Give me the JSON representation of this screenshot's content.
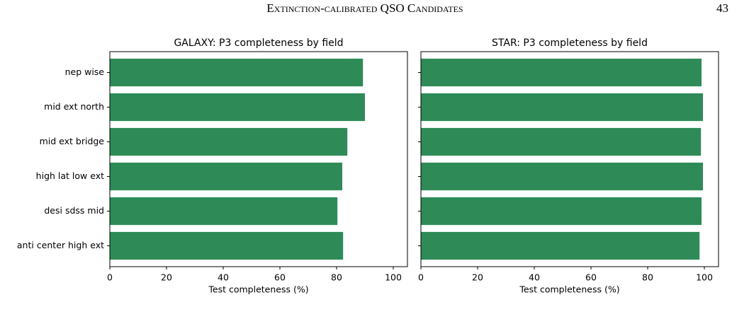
{
  "header": {
    "title": "Extinction-calibrated QSO Candidates",
    "page": "43"
  },
  "chart_data": [
    {
      "type": "barh",
      "title": "GALAXY: P3 completeness by field",
      "xlabel": "Test completeness (%)",
      "categories": [
        "nep wise",
        "mid ext north",
        "mid ext bridge",
        "high lat low ext",
        "desi sdss mid",
        "anti center high ext"
      ],
      "values": [
        89.3,
        90,
        83.8,
        82,
        80.3,
        82.3
      ],
      "color": "#2e8b57",
      "xlim": [
        0,
        105
      ],
      "xticks": [
        0,
        20,
        40,
        60,
        80,
        100
      ]
    },
    {
      "type": "barh",
      "title": "STAR: P3 completeness by field",
      "xlabel": "Test completeness (%)",
      "values": [
        99,
        99.5,
        98.8,
        99.5,
        99,
        98.3
      ],
      "color": "#2e8b57",
      "xlim": [
        0,
        105
      ],
      "xticks": [
        0,
        20,
        40,
        60,
        80,
        100
      ]
    }
  ]
}
